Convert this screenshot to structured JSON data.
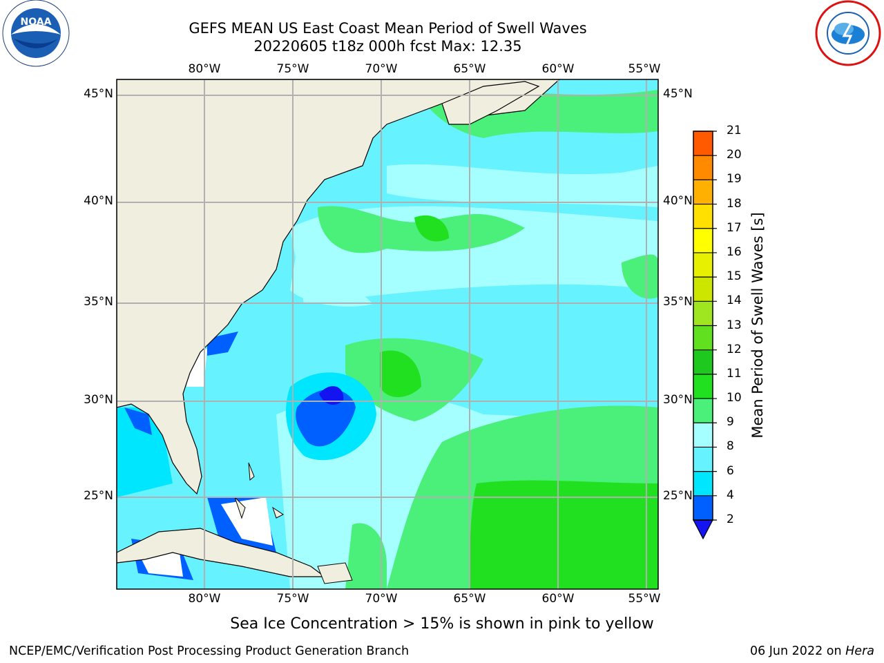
{
  "title": {
    "line1": "GEFS MEAN US East Coast Mean Period of Swell Waves",
    "line2": "20220605 t18z 000h fcst   Max: 12.35"
  },
  "logos": {
    "left": {
      "text": "NOAA",
      "icon": "noaa-logo"
    },
    "right": {
      "icon": "nws-logo"
    }
  },
  "map": {
    "lon_labels": [
      "80°W",
      "75°W",
      "70°W",
      "65°W",
      "60°W",
      "55°W"
    ],
    "lat_labels": [
      "45°N",
      "40°N",
      "35°N",
      "30°N",
      "25°N"
    ],
    "land_color": "#efeedf",
    "grid_color": "#b0b0b0"
  },
  "colorbar": {
    "title": "Mean Period of Swell Waves [s]",
    "ticks": [
      "2",
      "4",
      "6",
      "8",
      "9",
      "10",
      "11",
      "12",
      "13",
      "14",
      "15",
      "16",
      "17",
      "18",
      "19",
      "20",
      "21"
    ],
    "colors": [
      "#0060ff",
      "#00e6ff",
      "#66f2ff",
      "#a6ffff",
      "#4af07a",
      "#20e020",
      "#1ec81e",
      "#60e01e",
      "#a0e620",
      "#cce600",
      "#e6f000",
      "#ffff00",
      "#ffe000",
      "#ffb000",
      "#ff8a00",
      "#ff5a00",
      "#ff2800",
      "#ff0000"
    ],
    "extend_color": "#1414f0"
  },
  "note": "Sea Ice Concentration > 15% is shown in pink to yellow",
  "footer": {
    "left": "NCEP/EMC/Verification Post Processing Product Generation Branch",
    "date": "06 Jun 2022 on ",
    "host": "Hera"
  }
}
